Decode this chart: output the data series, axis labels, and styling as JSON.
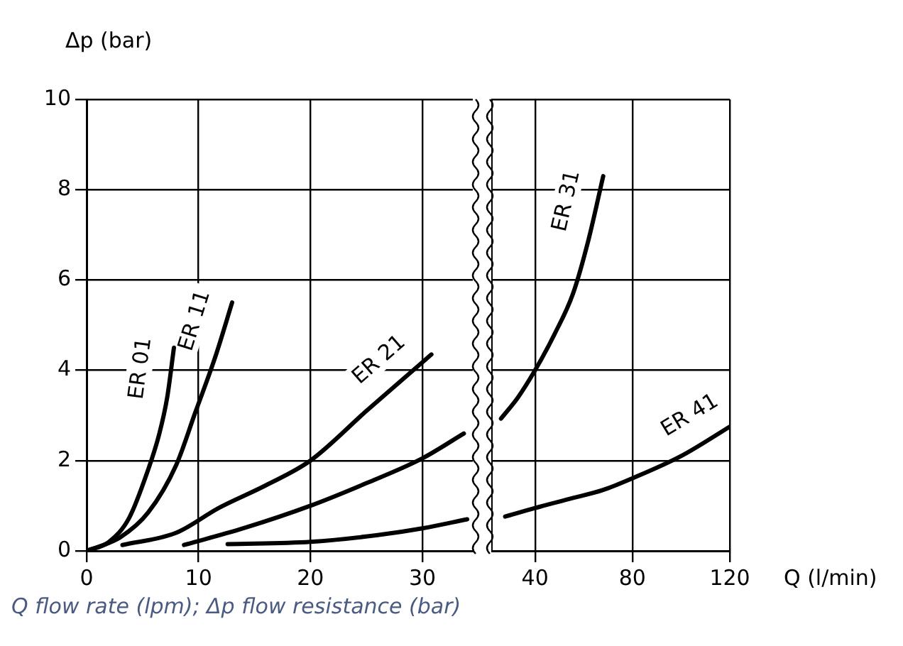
{
  "chart_data": [
    {
      "type": "line",
      "ylabel": "Δp (bar)",
      "annotations": [
        "Q flow rate (lpm); Δp flow resistance (bar)"
      ],
      "xlim": [
        0,
        34.5
      ],
      "xticks": [
        0,
        10,
        20,
        30
      ],
      "ylim": [
        0,
        10
      ],
      "yticks": [
        0,
        2,
        4,
        6,
        8,
        10
      ],
      "grid": true,
      "marker": "none",
      "line_style": "solid",
      "series": [
        {
          "name": "ER 01",
          "color": "#000000",
          "x": [
            0,
            2,
            3.8,
            5.5,
            6.5,
            7.2,
            7.8
          ],
          "values": [
            0,
            0.2,
            0.73,
            1.8,
            2.6,
            3.4,
            4.5
          ]
        },
        {
          "name": "ER 11",
          "color": "#000000",
          "x": [
            0,
            3,
            5.5,
            8,
            9.7,
            11.5,
            13
          ],
          "values": [
            0,
            0.3,
            0.85,
            1.9,
            3.06,
            4.3,
            5.5
          ]
        },
        {
          "name": "ER 21",
          "color": "#000000",
          "x": [
            3.2,
            8,
            11.8,
            16,
            20,
            25,
            30.8
          ],
          "values": [
            0.13,
            0.4,
            0.95,
            1.45,
            2,
            3.1,
            4.35
          ]
        },
        {
          "color": "#000000",
          "x": [
            8.7,
            14,
            20,
            25,
            30,
            33.7
          ],
          "values": [
            0.13,
            0.5,
            1,
            1.5,
            2.05,
            2.6
          ]
        },
        {
          "color": "#000000",
          "x": [
            12.6,
            20,
            26,
            30,
            34
          ],
          "values": [
            0.15,
            0.2,
            0.35,
            0.5,
            0.7
          ]
        }
      ]
    },
    {
      "type": "line",
      "xlabel": "Q (l/min)",
      "xlim": [
        22,
        120
      ],
      "xticks": [
        40,
        80,
        120
      ],
      "ylim": [
        0,
        10
      ],
      "yticks": [
        0,
        2,
        4,
        6,
        8,
        10
      ],
      "tick_labels": "x",
      "grid": true,
      "marker": "none",
      "line_style": "solid",
      "series": [
        {
          "name": "ER 31",
          "color": "#000000",
          "x": [
            26,
            33,
            40,
            48,
            55.6,
            62,
            68
          ],
          "values": [
            2.93,
            3.4,
            4,
            4.8,
            5.7,
            6.9,
            8.3
          ]
        },
        {
          "name": "ER 41",
          "color": "#000000",
          "x": [
            27.7,
            40,
            54,
            68,
            79.7,
            100,
            120
          ],
          "values": [
            0.76,
            0.95,
            1.15,
            1.35,
            1.6,
            2.1,
            2.75
          ]
        }
      ]
    }
  ]
}
